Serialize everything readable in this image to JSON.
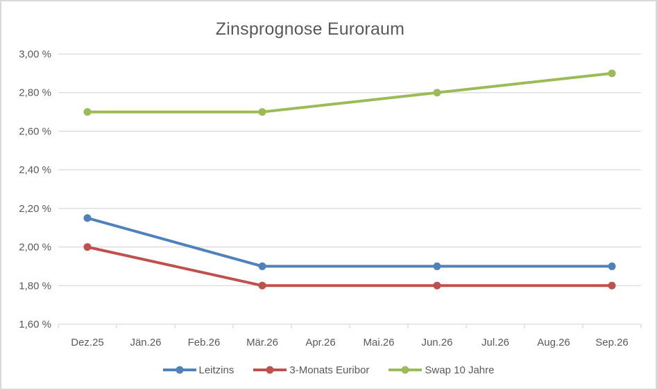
{
  "window": {
    "background": "#ffffff",
    "frame_border_color": "#d9d9d9"
  },
  "chart_data": {
    "type": "line",
    "title": "Zinsprognose Euroraum",
    "x_axis": {
      "categories": [
        "Dez.25",
        "Jän.26",
        "Feb.26",
        "Mär.26",
        "Apr.26",
        "Mai.26",
        "Jun.26",
        "Jul.26",
        "Aug.26",
        "Sep.26"
      ]
    },
    "y_axis": {
      "min": 1.6,
      "max": 3.0,
      "step": 0.2,
      "tick_values": [
        3.0,
        2.8,
        2.6,
        2.4,
        2.2,
        2.0,
        1.8,
        1.6
      ],
      "tick_labels": [
        "3,00 %",
        "2,80 %",
        "2,60 %",
        "2,40 %",
        "2,20 %",
        "2,00 %",
        "1,80 %",
        "1,60 %"
      ]
    },
    "series": [
      {
        "name": "Leitzins",
        "color": "#4F81BD",
        "x": [
          "Dez.25",
          "Mär.26",
          "Jun.26",
          "Sep.26"
        ],
        "values": [
          2.15,
          1.9,
          1.9,
          1.9
        ]
      },
      {
        "name": "3-Monats Euribor",
        "color": "#C0504D",
        "x": [
          "Dez.25",
          "Mär.26",
          "Jun.26",
          "Sep.26"
        ],
        "values": [
          2.0,
          1.8,
          1.8,
          1.8
        ]
      },
      {
        "name": "Swap 10 Jahre",
        "color": "#9BBB59",
        "x": [
          "Dez.25",
          "Mär.26",
          "Jun.26",
          "Sep.26"
        ],
        "values": [
          2.7,
          2.7,
          2.8,
          2.9
        ]
      }
    ],
    "legend_position": "bottom",
    "grid": "horizontal",
    "gridline_color": "#d9d9d9",
    "text_color": "#595959"
  }
}
